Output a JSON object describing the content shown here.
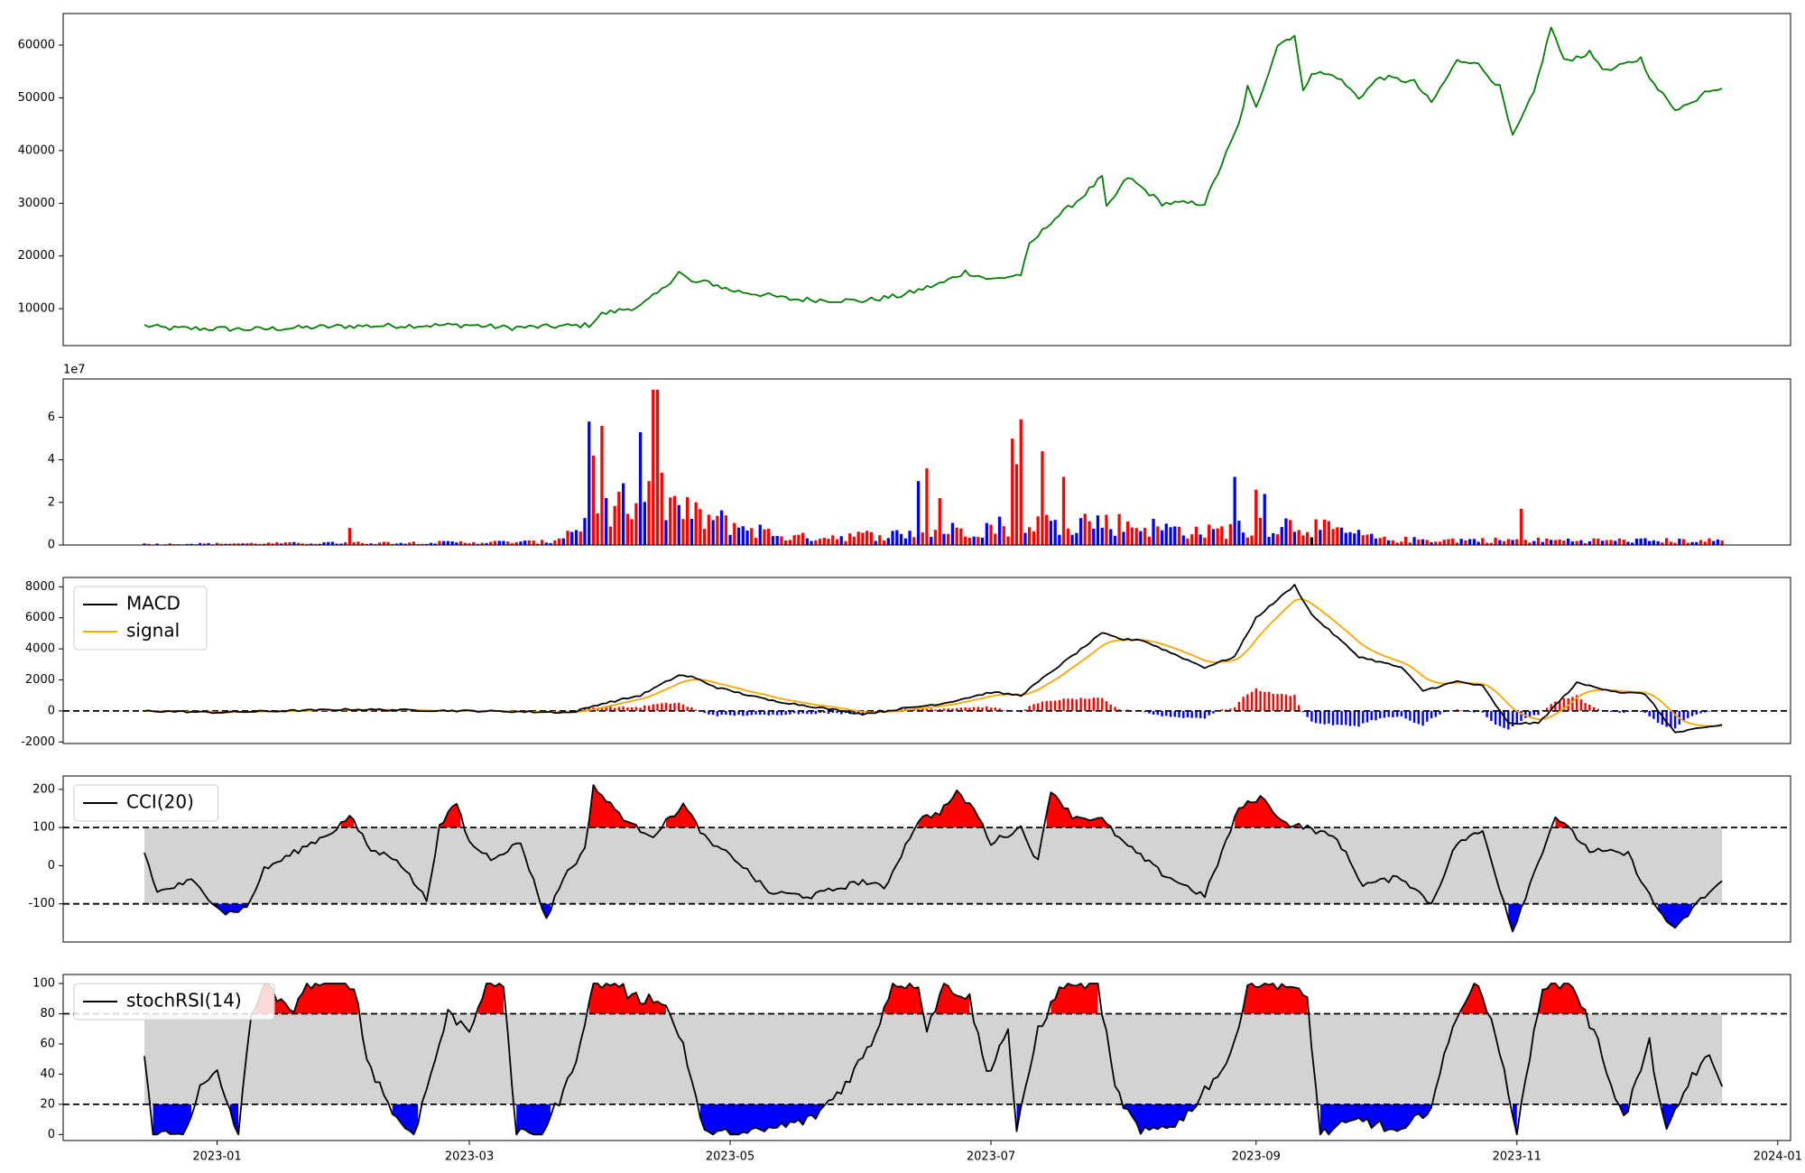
{
  "chart_data": [
    {
      "type": "line",
      "panel": "price",
      "ylim": [
        3000,
        66000
      ],
      "yticks": [
        "10000",
        "20000",
        "30000",
        "40000",
        "50000",
        "60000"
      ],
      "colors": {
        "line": "#008000"
      },
      "anchors": [
        [
          "2022-12-15",
          6800
        ],
        [
          "2022-12-20",
          6300
        ],
        [
          "2023-01-01",
          6200
        ],
        [
          "2023-01-10",
          6100
        ],
        [
          "2023-02-01",
          6700
        ],
        [
          "2023-03-01",
          6900
        ],
        [
          "2023-03-10",
          6400
        ],
        [
          "2023-03-20",
          6600
        ],
        [
          "2023-03-29",
          6900
        ],
        [
          "2023-04-01",
          9000
        ],
        [
          "2023-04-10",
          10500
        ],
        [
          "2023-04-15",
          13500
        ],
        [
          "2023-04-19",
          17000
        ],
        [
          "2023-04-22",
          15000
        ],
        [
          "2023-04-26",
          15000
        ],
        [
          "2023-05-01",
          13500
        ],
        [
          "2023-05-10",
          12500
        ],
        [
          "2023-05-15",
          11800
        ],
        [
          "2023-06-01",
          11500
        ],
        [
          "2023-06-10",
          12500
        ],
        [
          "2023-06-20",
          15000
        ],
        [
          "2023-06-25",
          17000
        ],
        [
          "2023-07-01",
          15500
        ],
        [
          "2023-07-08",
          16500
        ],
        [
          "2023-07-10",
          22000
        ],
        [
          "2023-07-15",
          26500
        ],
        [
          "2023-07-22",
          31000
        ],
        [
          "2023-07-27",
          35000
        ],
        [
          "2023-07-28",
          29000
        ],
        [
          "2023-08-02",
          35000
        ],
        [
          "2023-08-10",
          30000
        ],
        [
          "2023-08-20",
          30000
        ],
        [
          "2023-08-28",
          45000
        ],
        [
          "2023-08-30",
          52000
        ],
        [
          "2023-09-01",
          48000
        ],
        [
          "2023-09-06",
          60000
        ],
        [
          "2023-09-10",
          62000
        ],
        [
          "2023-09-12",
          51000
        ],
        [
          "2023-09-14",
          55000
        ],
        [
          "2023-09-20",
          54000
        ],
        [
          "2023-09-25",
          50000
        ],
        [
          "2023-09-30",
          54000
        ],
        [
          "2023-10-08",
          53000
        ],
        [
          "2023-10-12",
          49000
        ],
        [
          "2023-10-18",
          57000
        ],
        [
          "2023-10-22",
          57000
        ],
        [
          "2023-10-28",
          52000
        ],
        [
          "2023-10-31",
          42500
        ],
        [
          "2023-11-05",
          51000
        ],
        [
          "2023-11-09",
          63500
        ],
        [
          "2023-11-12",
          57000
        ],
        [
          "2023-11-18",
          58500
        ],
        [
          "2023-11-22",
          55000
        ],
        [
          "2023-11-30",
          57500
        ],
        [
          "2023-12-03",
          52500
        ],
        [
          "2023-12-08",
          48000
        ],
        [
          "2023-12-12",
          49000
        ],
        [
          "2023-12-15",
          51500
        ],
        [
          "2023-12-19",
          52000
        ]
      ]
    },
    {
      "type": "bar",
      "panel": "volume",
      "ylim": [
        0,
        7.8
      ],
      "yticks": [
        "0",
        "2",
        "4",
        "6"
      ],
      "exponent_label": "1e7",
      "colors": {
        "up": "#ff0000",
        "down": "#0000ff",
        "neutral": "#000000"
      },
      "events": [
        [
          "2023-02-01",
          0.8
        ],
        [
          "2023-03-29",
          5.8
        ],
        [
          "2023-03-30",
          4.2
        ],
        [
          "2023-04-01",
          5.6
        ],
        [
          "2023-04-02",
          2.2
        ],
        [
          "2023-04-05",
          2.5
        ],
        [
          "2023-04-06",
          2.9
        ],
        [
          "2023-04-10",
          5.3
        ],
        [
          "2023-04-12",
          3.0
        ],
        [
          "2023-04-13",
          7.3
        ],
        [
          "2023-04-14",
          7.3
        ],
        [
          "2023-04-15",
          3.4
        ],
        [
          "2023-04-18",
          2.3
        ],
        [
          "2023-06-14",
          3.0
        ],
        [
          "2023-06-16",
          3.6
        ],
        [
          "2023-06-19",
          2.2
        ],
        [
          "2023-07-06",
          5.0
        ],
        [
          "2023-07-07",
          3.8
        ],
        [
          "2023-07-08",
          5.9
        ],
        [
          "2023-07-13",
          4.4
        ],
        [
          "2023-07-18",
          3.2
        ],
        [
          "2023-08-27",
          3.2
        ],
        [
          "2023-09-01",
          2.6
        ],
        [
          "2023-09-03",
          2.4
        ],
        [
          "2023-11-02",
          1.7
        ]
      ]
    },
    {
      "type": "line",
      "panel": "macd",
      "ylim": [
        -2100,
        8600
      ],
      "yticks": [
        "-2000",
        "0",
        "2000",
        "4000",
        "6000",
        "8000"
      ],
      "series": [
        {
          "name": "MACD",
          "color": "#000000"
        },
        {
          "name": "signal",
          "color": "#ffa500"
        }
      ],
      "colors": {
        "hist_up": "#ff0000",
        "hist_down": "#0000ff",
        "zero_line": "#000000"
      },
      "anchors": [
        [
          "2022-12-15",
          0
        ],
        [
          "2023-01-01",
          -100
        ],
        [
          "2023-02-01",
          100
        ],
        [
          "2023-03-01",
          0
        ],
        [
          "2023-03-25",
          -100
        ],
        [
          "2023-03-31",
          400
        ],
        [
          "2023-04-10",
          1000
        ],
        [
          "2023-04-19",
          2300
        ],
        [
          "2023-04-22",
          2200
        ],
        [
          "2023-04-28",
          1500
        ],
        [
          "2023-05-10",
          700
        ],
        [
          "2023-06-01",
          -200
        ],
        [
          "2023-06-20",
          500
        ],
        [
          "2023-07-01",
          1200
        ],
        [
          "2023-07-08",
          1000
        ],
        [
          "2023-07-15",
          2500
        ],
        [
          "2023-07-27",
          5000
        ],
        [
          "2023-08-01",
          4600
        ],
        [
          "2023-08-05",
          4600
        ],
        [
          "2023-08-20",
          2800
        ],
        [
          "2023-08-27",
          3500
        ],
        [
          "2023-09-01",
          6000
        ],
        [
          "2023-09-10",
          8100
        ],
        [
          "2023-09-14",
          6200
        ],
        [
          "2023-09-25",
          3500
        ],
        [
          "2023-10-05",
          2800
        ],
        [
          "2023-10-10",
          1300
        ],
        [
          "2023-10-18",
          1900
        ],
        [
          "2023-10-24",
          1600
        ],
        [
          "2023-10-30",
          -800
        ],
        [
          "2023-11-06",
          -800
        ],
        [
          "2023-11-15",
          1800
        ],
        [
          "2023-11-25",
          1200
        ],
        [
          "2023-12-01",
          1100
        ],
        [
          "2023-12-08",
          -1400
        ],
        [
          "2023-12-19",
          -900
        ]
      ]
    },
    {
      "type": "line",
      "panel": "cci",
      "ylim": [
        -200,
        235
      ],
      "yticks": [
        "-100",
        "0",
        "100",
        "200"
      ],
      "series": [
        {
          "name": "CCI(20)",
          "color": "#000000"
        }
      ],
      "bands": [
        -100,
        100
      ],
      "colors": {
        "band_fill": "#d3d3d3",
        "over": "#ff0000",
        "under": "#0000ff"
      },
      "anchors": [
        [
          "2022-12-15",
          35
        ],
        [
          "2022-12-18",
          -70
        ],
        [
          "2022-12-26",
          -40
        ],
        [
          "2023-01-03",
          -125
        ],
        [
          "2023-01-08",
          -110
        ],
        [
          "2023-01-12",
          -10
        ],
        [
          "2023-01-20",
          40
        ],
        [
          "2023-01-28",
          90
        ],
        [
          "2023-02-01",
          130
        ],
        [
          "2023-02-06",
          40
        ],
        [
          "2023-02-12",
          20
        ],
        [
          "2023-02-19",
          -90
        ],
        [
          "2023-02-22",
          100
        ],
        [
          "2023-02-26",
          165
        ],
        [
          "2023-03-01",
          60
        ],
        [
          "2023-03-06",
          20
        ],
        [
          "2023-03-13",
          60
        ],
        [
          "2023-03-19",
          -140
        ],
        [
          "2023-03-23",
          -30
        ],
        [
          "2023-03-28",
          40
        ],
        [
          "2023-03-30",
          210
        ],
        [
          "2023-04-02",
          170
        ],
        [
          "2023-04-08",
          105
        ],
        [
          "2023-04-13",
          80
        ],
        [
          "2023-04-20",
          160
        ],
        [
          "2023-04-26",
          60
        ],
        [
          "2023-05-02",
          20
        ],
        [
          "2023-05-10",
          -70
        ],
        [
          "2023-05-20",
          -80
        ],
        [
          "2023-06-01",
          -40
        ],
        [
          "2023-06-06",
          -60
        ],
        [
          "2023-06-14",
          120
        ],
        [
          "2023-06-19",
          140
        ],
        [
          "2023-06-23",
          190
        ],
        [
          "2023-06-27",
          150
        ],
        [
          "2023-07-01",
          60
        ],
        [
          "2023-07-08",
          100
        ],
        [
          "2023-07-12",
          10
        ],
        [
          "2023-07-15",
          200
        ],
        [
          "2023-07-20",
          130
        ],
        [
          "2023-07-27",
          120
        ],
        [
          "2023-08-01",
          60
        ],
        [
          "2023-08-10",
          -20
        ],
        [
          "2023-08-20",
          -80
        ],
        [
          "2023-08-28",
          150
        ],
        [
          "2023-09-02",
          180
        ],
        [
          "2023-09-08",
          110
        ],
        [
          "2023-09-13",
          100
        ],
        [
          "2023-09-20",
          70
        ],
        [
          "2023-09-26",
          -50
        ],
        [
          "2023-10-05",
          -30
        ],
        [
          "2023-10-12",
          -100
        ],
        [
          "2023-10-18",
          60
        ],
        [
          "2023-10-24",
          90
        ],
        [
          "2023-10-31",
          -170
        ],
        [
          "2023-11-05",
          -20
        ],
        [
          "2023-11-10",
          130
        ],
        [
          "2023-11-18",
          40
        ],
        [
          "2023-11-27",
          30
        ],
        [
          "2023-12-03",
          -100
        ],
        [
          "2023-12-08",
          -170
        ],
        [
          "2023-12-13",
          -100
        ],
        [
          "2023-12-19",
          -40
        ]
      ]
    },
    {
      "type": "line",
      "panel": "stochrsi",
      "ylim": [
        -4,
        106
      ],
      "yticks": [
        "0",
        "20",
        "40",
        "60",
        "80",
        "100"
      ],
      "series": [
        {
          "name": "stochRSI(14)",
          "color": "#000000"
        }
      ],
      "bands": [
        20,
        80
      ],
      "colors": {
        "band_fill": "#d3d3d3",
        "over": "#ff0000",
        "under": "#0000ff"
      },
      "anchors": [
        [
          "2022-12-15",
          50
        ],
        [
          "2022-12-17",
          0
        ],
        [
          "2022-12-24",
          0
        ],
        [
          "2022-12-28",
          30
        ],
        [
          "2023-01-01",
          40
        ],
        [
          "2023-01-06",
          0
        ],
        [
          "2023-01-09",
          80
        ],
        [
          "2023-01-12",
          100
        ],
        [
          "2023-01-18",
          80
        ],
        [
          "2023-01-22",
          100
        ],
        [
          "2023-02-02",
          100
        ],
        [
          "2023-02-05",
          50
        ],
        [
          "2023-02-12",
          10
        ],
        [
          "2023-02-16",
          0
        ],
        [
          "2023-02-24",
          80
        ],
        [
          "2023-03-01",
          70
        ],
        [
          "2023-03-05",
          100
        ],
        [
          "2023-03-09",
          100
        ],
        [
          "2023-03-12",
          0
        ],
        [
          "2023-03-18",
          0
        ],
        [
          "2023-03-25",
          40
        ],
        [
          "2023-03-30",
          100
        ],
        [
          "2023-04-05",
          100
        ],
        [
          "2023-04-08",
          90
        ],
        [
          "2023-04-15",
          90
        ],
        [
          "2023-04-20",
          60
        ],
        [
          "2023-04-25",
          0
        ],
        [
          "2023-05-05",
          0
        ],
        [
          "2023-05-20",
          10
        ],
        [
          "2023-05-27",
          30
        ],
        [
          "2023-06-03",
          60
        ],
        [
          "2023-06-08",
          100
        ],
        [
          "2023-06-14",
          100
        ],
        [
          "2023-06-16",
          70
        ],
        [
          "2023-06-20",
          100
        ],
        [
          "2023-06-26",
          90
        ],
        [
          "2023-06-30",
          40
        ],
        [
          "2023-07-05",
          70
        ],
        [
          "2023-07-07",
          0
        ],
        [
          "2023-07-12",
          70
        ],
        [
          "2023-07-18",
          100
        ],
        [
          "2023-07-26",
          100
        ],
        [
          "2023-07-30",
          30
        ],
        [
          "2023-08-05",
          0
        ],
        [
          "2023-08-15",
          10
        ],
        [
          "2023-08-20",
          30
        ],
        [
          "2023-08-26",
          50
        ],
        [
          "2023-08-30",
          100
        ],
        [
          "2023-09-07",
          100
        ],
        [
          "2023-09-13",
          90
        ],
        [
          "2023-09-16",
          0
        ],
        [
          "2023-09-26",
          10
        ],
        [
          "2023-10-05",
          0
        ],
        [
          "2023-10-12",
          20
        ],
        [
          "2023-10-18",
          80
        ],
        [
          "2023-10-22",
          100
        ],
        [
          "2023-10-26",
          80
        ],
        [
          "2023-11-01",
          0
        ],
        [
          "2023-11-07",
          100
        ],
        [
          "2023-11-14",
          100
        ],
        [
          "2023-11-20",
          60
        ],
        [
          "2023-11-26",
          10
        ],
        [
          "2023-12-02",
          60
        ],
        [
          "2023-12-06",
          0
        ],
        [
          "2023-12-12",
          40
        ],
        [
          "2023-12-16",
          50
        ],
        [
          "2023-12-19",
          35
        ]
      ]
    }
  ],
  "x_axis": {
    "range": [
      "2022-11-26",
      "2024-01-04"
    ],
    "ticks": [
      {
        "date": "2023-01-01",
        "label": "2023-01"
      },
      {
        "date": "2023-03-01",
        "label": "2023-03"
      },
      {
        "date": "2023-05-01",
        "label": "2023-05"
      },
      {
        "date": "2023-07-01",
        "label": "2023-07"
      },
      {
        "date": "2023-09-01",
        "label": "2023-09"
      },
      {
        "date": "2023-11-01",
        "label": "2023-11"
      },
      {
        "date": "2024-01-01",
        "label": "2024-01"
      }
    ]
  }
}
